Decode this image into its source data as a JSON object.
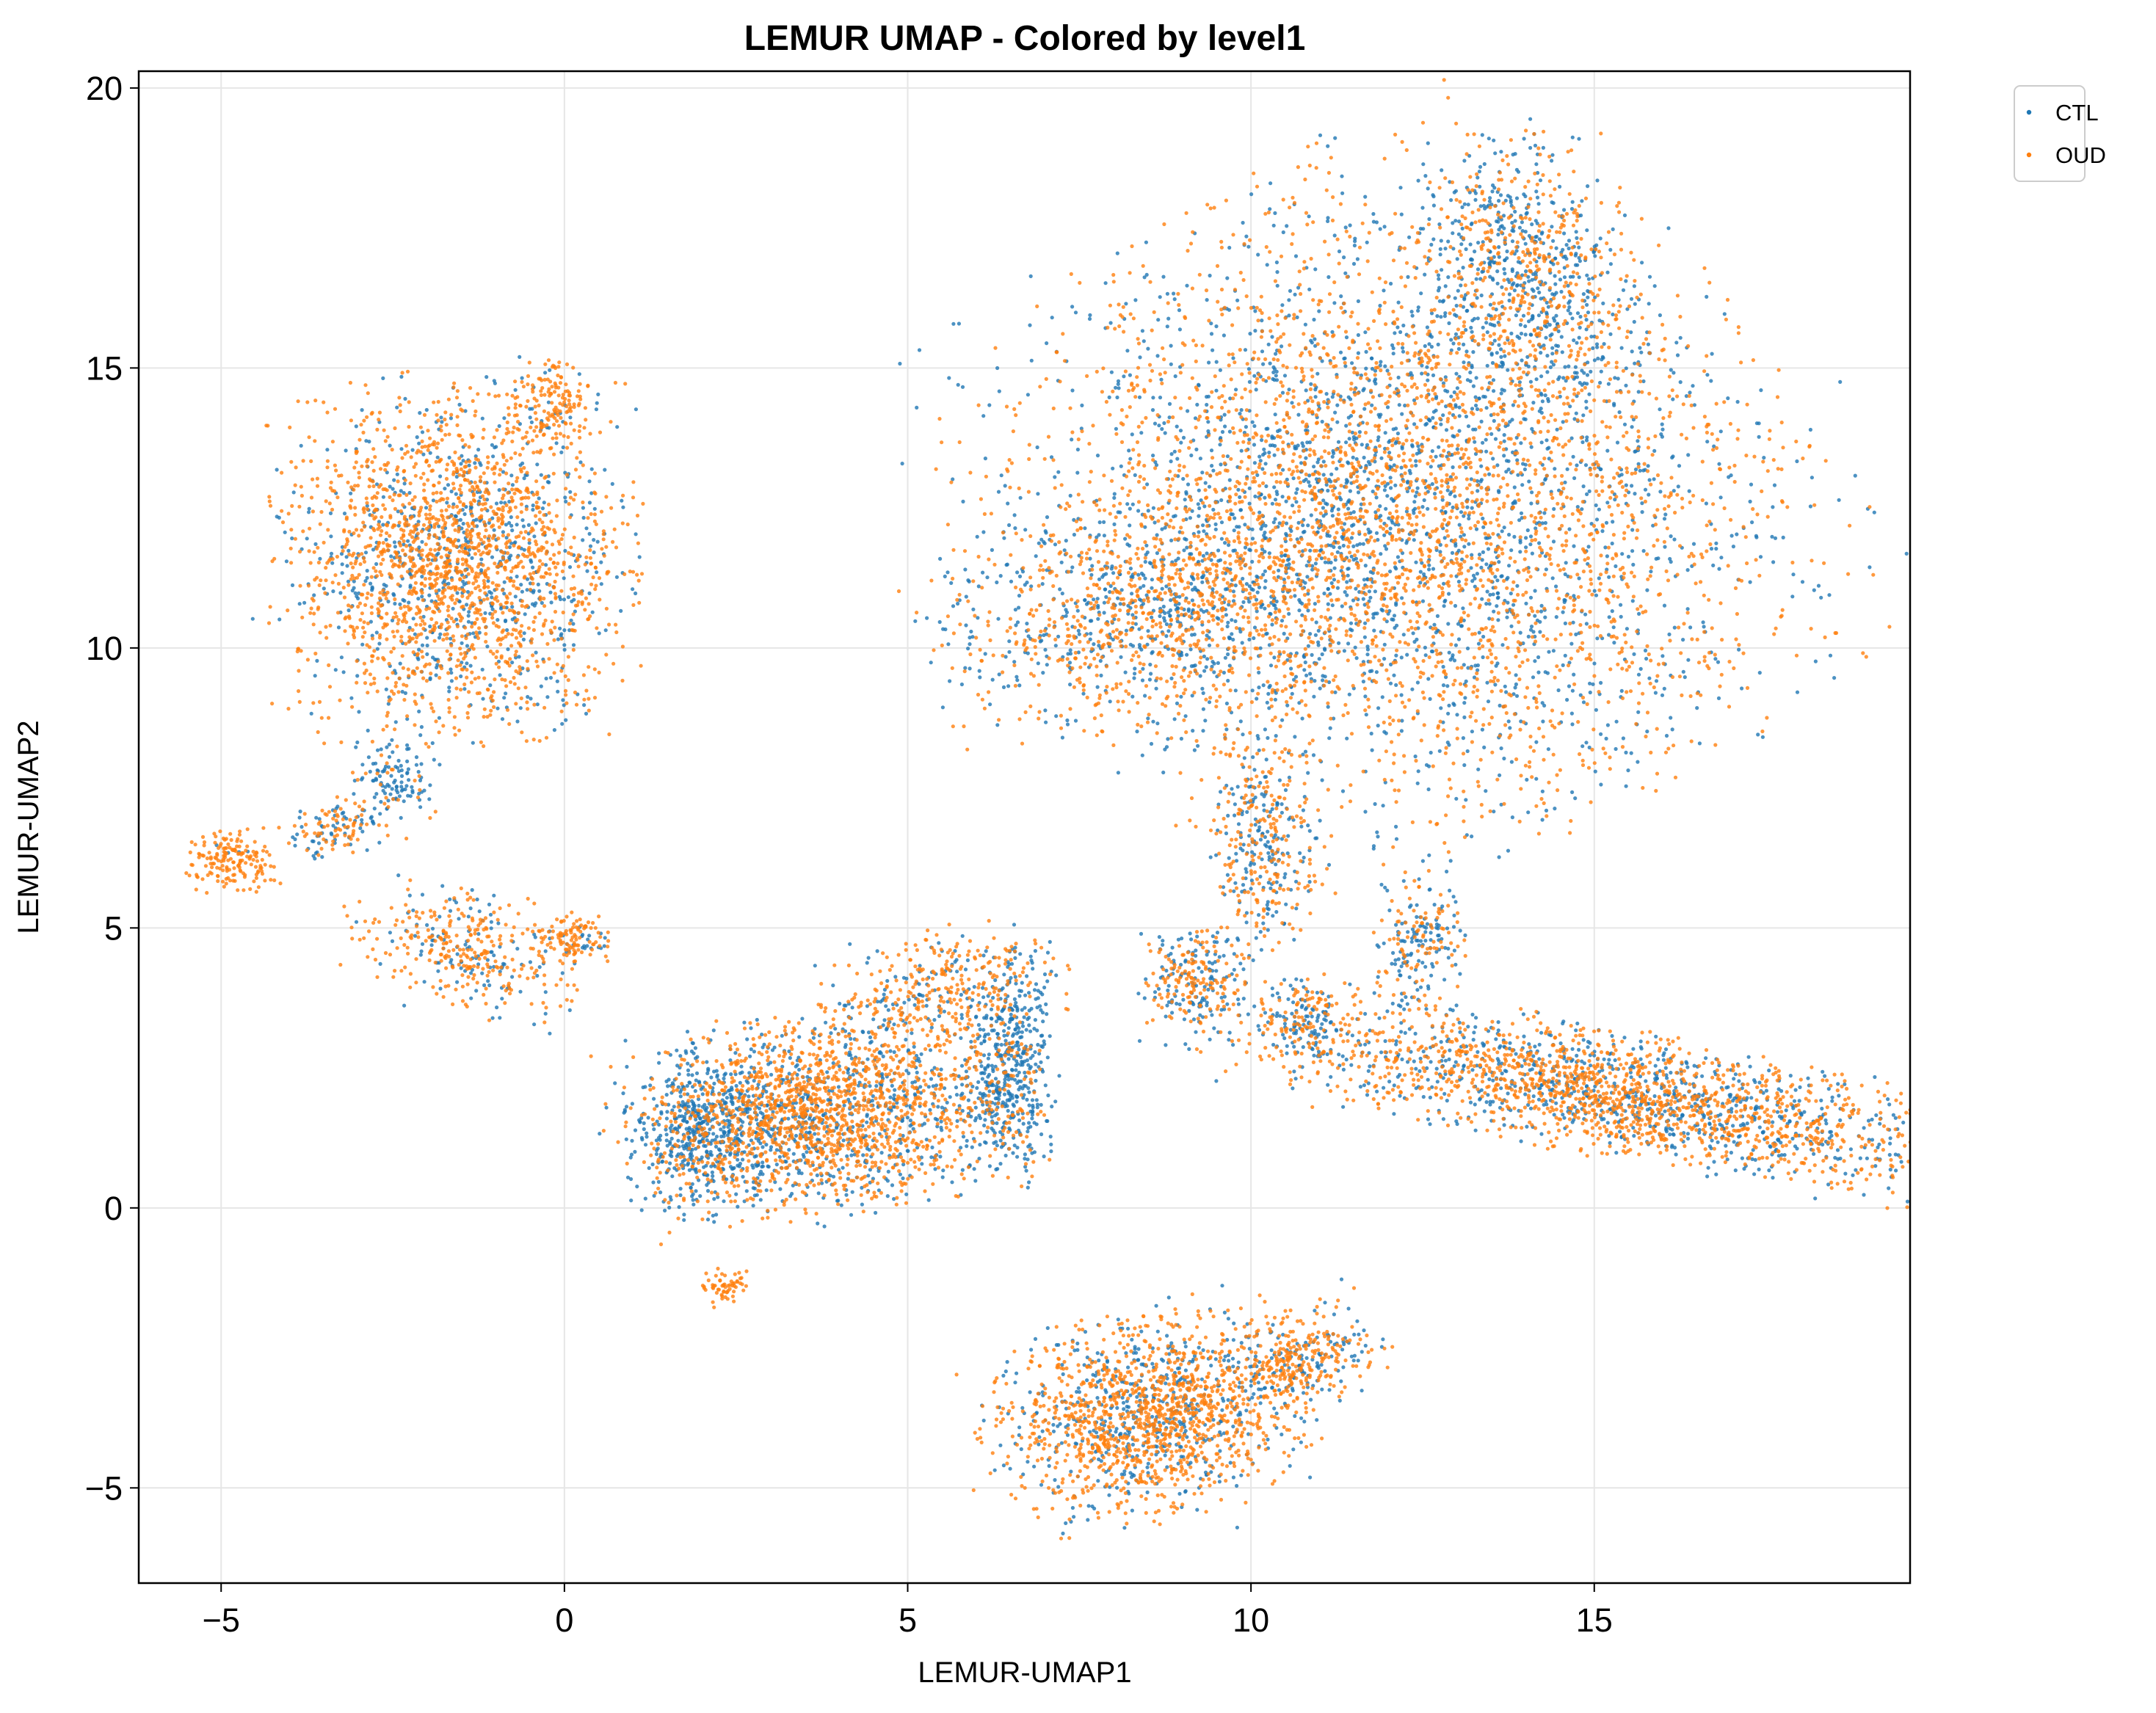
{
  "chart_data": {
    "type": "scatter",
    "title": "LEMUR UMAP - Colored by level1",
    "xlabel": "LEMUR-UMAP1",
    "ylabel": "LEMUR-UMAP2",
    "xlim": [
      -6.2,
      19.6
    ],
    "ylim": [
      -6.7,
      20.3
    ],
    "x_ticks": [
      -5,
      0,
      5,
      10,
      15
    ],
    "y_ticks": [
      -5,
      0,
      5,
      10,
      15,
      20
    ],
    "x_tick_labels": [
      "−5",
      "0",
      "5",
      "10",
      "15"
    ],
    "y_tick_labels": [
      "−5",
      "0",
      "5",
      "10",
      "15",
      "20"
    ],
    "grid": true,
    "legend_position": "outside-top-right",
    "series": [
      {
        "name": "CTL",
        "color": "#1f77b4"
      },
      {
        "name": "OUD",
        "color": "#ff7f0e"
      }
    ],
    "clusters": [
      {
        "label": "upper-right main cluster",
        "cx": 12.2,
        "cy": 12.5,
        "sx": 2.5,
        "sy": 2.6,
        "rot": 0.55,
        "n": 5200,
        "ctl_share": 0.45
      },
      {
        "label": "upper-right top lobe",
        "cx": 14.0,
        "cy": 16.8,
        "sx": 0.7,
        "sy": 1.1,
        "rot": 0.2,
        "n": 700,
        "ctl_share": 0.55
      },
      {
        "label": "upper-right lower lobe",
        "cx": 8.6,
        "cy": 10.8,
        "sx": 1.5,
        "sy": 0.9,
        "rot": 0.25,
        "n": 1100,
        "ctl_share": 0.45
      },
      {
        "label": "upper-left cluster",
        "cx": -1.6,
        "cy": 11.6,
        "sx": 1.15,
        "sy": 1.4,
        "rot": 0.0,
        "n": 2400,
        "ctl_share": 0.3
      },
      {
        "label": "upper-left top patch",
        "cx": -0.2,
        "cy": 14.3,
        "sx": 0.3,
        "sy": 0.4,
        "rot": 0.0,
        "n": 150,
        "ctl_share": 0.1
      },
      {
        "label": "middle-left cluster",
        "cx": 3.8,
        "cy": 1.7,
        "sx": 1.3,
        "sy": 0.8,
        "rot": 0.2,
        "n": 2200,
        "ctl_share": 0.35
      },
      {
        "label": "middle-left blue edge",
        "cx": 2.0,
        "cy": 1.4,
        "sx": 0.5,
        "sy": 0.7,
        "rot": 0.0,
        "n": 500,
        "ctl_share": 0.9
      },
      {
        "label": "middle-left right arm",
        "cx": 6.5,
        "cy": 2.5,
        "sx": 0.3,
        "sy": 0.9,
        "rot": 0.0,
        "n": 500,
        "ctl_share": 0.85
      },
      {
        "label": "middle-left upper arm",
        "cx": 5.5,
        "cy": 4.0,
        "sx": 0.8,
        "sy": 0.45,
        "rot": 0.3,
        "n": 350,
        "ctl_share": 0.3
      },
      {
        "label": "bottom cluster",
        "cx": 8.5,
        "cy": -3.7,
        "sx": 1.05,
        "sy": 0.8,
        "rot": 0.3,
        "n": 1700,
        "ctl_share": 0.3
      },
      {
        "label": "bottom cluster tail",
        "cx": 10.7,
        "cy": -2.7,
        "sx": 0.55,
        "sy": 0.4,
        "rot": 0.5,
        "n": 350,
        "ctl_share": 0.35
      },
      {
        "label": "right elongated cluster",
        "cx": 15.5,
        "cy": 2.0,
        "sx": 2.6,
        "sy": 0.5,
        "rot": -0.22,
        "n": 2400,
        "ctl_share": 0.35
      },
      {
        "label": "right cluster head",
        "cx": 12.5,
        "cy": 4.7,
        "sx": 0.3,
        "sy": 0.5,
        "rot": 0.0,
        "n": 200,
        "ctl_share": 0.5
      },
      {
        "label": "bridge stem",
        "cx": 10.2,
        "cy": 6.4,
        "sx": 0.35,
        "sy": 1.0,
        "rot": 0.0,
        "n": 350,
        "ctl_share": 0.5
      },
      {
        "label": "small middle blob",
        "cx": 9.2,
        "cy": 4.0,
        "sx": 0.35,
        "sy": 0.5,
        "rot": 0.0,
        "n": 280,
        "ctl_share": 0.5
      },
      {
        "label": "small blob near stem",
        "cx": 10.8,
        "cy": 3.4,
        "sx": 0.3,
        "sy": 0.3,
        "rot": 0.0,
        "n": 150,
        "ctl_share": 0.5
      },
      {
        "label": "left tail top",
        "cx": -2.5,
        "cy": 7.6,
        "sx": 0.3,
        "sy": 0.3,
        "rot": 0.0,
        "n": 120,
        "ctl_share": 0.8
      },
      {
        "label": "left tail chain",
        "cx": -3.3,
        "cy": 6.8,
        "sx": 0.4,
        "sy": 0.25,
        "rot": 0.2,
        "n": 130,
        "ctl_share": 0.5
      },
      {
        "label": "far left blob",
        "cx": -4.8,
        "cy": 6.2,
        "sx": 0.3,
        "sy": 0.25,
        "rot": 0.0,
        "n": 170,
        "ctl_share": 0.05
      },
      {
        "label": "lower left strand",
        "cx": -1.5,
        "cy": 4.6,
        "sx": 0.8,
        "sy": 0.5,
        "rot": -0.3,
        "n": 380,
        "ctl_share": 0.3
      },
      {
        "label": "lower left right end",
        "cx": 0.1,
        "cy": 4.8,
        "sx": 0.25,
        "sy": 0.2,
        "rot": 0.0,
        "n": 120,
        "ctl_share": 0.2
      },
      {
        "label": "small orange patch",
        "cx": 2.3,
        "cy": -1.4,
        "sx": 0.15,
        "sy": 0.15,
        "rot": 0.0,
        "n": 60,
        "ctl_share": 0.0
      }
    ]
  },
  "legend": {
    "items": [
      "CTL",
      "OUD"
    ]
  }
}
